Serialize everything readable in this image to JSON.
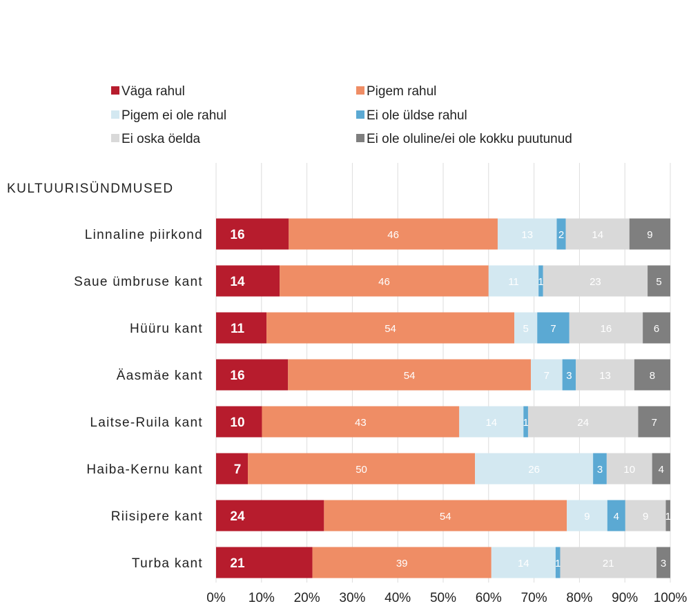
{
  "chart_data": {
    "type": "bar",
    "orientation": "horizontal",
    "stacked": true,
    "section_title": "KULTUURISÜNDMUSED",
    "categories": [
      "Linnaline piirkond",
      "Saue ümbruse kant",
      "Hüüru kant",
      "Äasmäe kant",
      "Laitse-Ruila kant",
      "Haiba-Kernu kant",
      "Riisipere kant",
      "Turba kant"
    ],
    "series": [
      {
        "name": "Väga rahul",
        "color": "#b71c2d",
        "label_color": "#ffffff",
        "label_bold": true,
        "values": [
          16,
          14,
          11,
          16,
          10,
          7,
          24,
          21
        ]
      },
      {
        "name": "Pigem rahul",
        "color": "#ef8d65",
        "label_color": "#ffffff",
        "label_bold": false,
        "values": [
          46,
          46,
          54,
          54,
          43,
          50,
          54,
          39
        ]
      },
      {
        "name": "Pigem ei ole rahul",
        "color": "#d3e8f1",
        "label_color": "#ffffff",
        "label_bold": false,
        "values": [
          13,
          11,
          5,
          7,
          14,
          26,
          9,
          14
        ]
      },
      {
        "name": "Ei ole üldse rahul",
        "color": "#5ba9d3",
        "label_color": "#ffffff",
        "label_bold": false,
        "values": [
          2,
          1,
          7,
          3,
          1,
          3,
          4,
          1
        ]
      },
      {
        "name": "Ei oska öelda",
        "color": "#d9d9d9",
        "label_color": "#ffffff",
        "label_bold": false,
        "values": [
          14,
          23,
          16,
          13,
          24,
          10,
          9,
          21
        ]
      },
      {
        "name": "Ei ole oluline/ei ole kokku puutunud",
        "color": "#7f7f7f",
        "label_color": "#ffffff",
        "label_bold": false,
        "values": [
          9,
          5,
          6,
          8,
          7,
          4,
          1,
          3
        ]
      }
    ],
    "xlim": [
      0,
      100
    ],
    "x_ticks": [
      "0%",
      "10%",
      "20%",
      "30%",
      "40%",
      "50%",
      "60%",
      "70%",
      "80%",
      "90%",
      "100%"
    ],
    "grid": true,
    "legend_position": "top"
  }
}
